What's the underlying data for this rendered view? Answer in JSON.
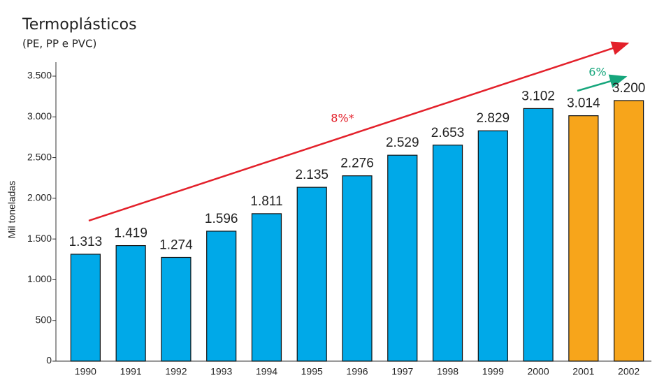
{
  "chart_data": {
    "type": "bar",
    "title": "Termoplásticos",
    "subtitle": "(PE, PP e PVC)",
    "y_label": "Mil toneladas",
    "categories": [
      "1990",
      "1991",
      "1992",
      "1993",
      "1994",
      "1995",
      "1996",
      "1997",
      "1998",
      "1999",
      "2000",
      "2001",
      "2002"
    ],
    "values": [
      1313,
      1419,
      1274,
      1596,
      1811,
      2135,
      2276,
      2529,
      2653,
      2829,
      3102,
      3014,
      3200
    ],
    "value_labels": [
      "1.313",
      "1.419",
      "1.274",
      "1.596",
      "1.811",
      "2.135",
      "2.276",
      "2.529",
      "2.653",
      "2.829",
      "3.102",
      "3.014",
      "3.200"
    ],
    "colors": [
      "#00a9e8",
      "#00a9e8",
      "#00a9e8",
      "#00a9e8",
      "#00a9e8",
      "#00a9e8",
      "#00a9e8",
      "#00a9e8",
      "#00a9e8",
      "#00a9e8",
      "#00a9e8",
      "#f7a51b",
      "#f7a51b"
    ],
    "ylim": [
      0,
      3500
    ],
    "yticks": [
      0,
      500,
      {
        "value": 1000,
        "label": "1.000"
      },
      {
        "value": 1500,
        "label": "1.500"
      },
      {
        "value": 2000,
        "label": "2.000"
      },
      {
        "value": 2500,
        "label": "2.500"
      },
      {
        "value": 3000,
        "label": "3.000"
      },
      {
        "value": 3500,
        "label": "3.500"
      }
    ],
    "annotations": [
      {
        "text": "8%*",
        "color": "#e3202a"
      },
      {
        "text": "6%",
        "color": "#16a67c"
      }
    ]
  }
}
